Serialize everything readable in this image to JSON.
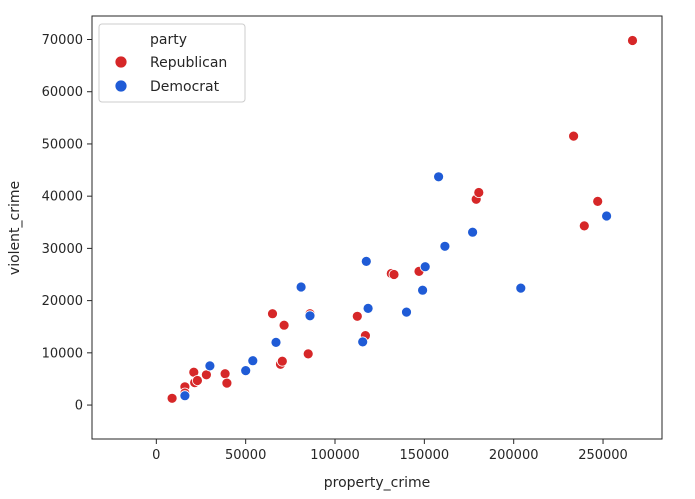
{
  "chart_data": {
    "type": "scatter",
    "xlabel": "property_crime",
    "ylabel": "violent_crime",
    "xlim": [
      -36000,
      283000
    ],
    "ylim": [
      -6500,
      74500
    ],
    "xticks": [
      0,
      50000,
      100000,
      150000,
      200000,
      250000
    ],
    "yticks": [
      0,
      10000,
      20000,
      30000,
      40000,
      50000,
      60000,
      70000
    ],
    "grid": false,
    "legend": {
      "title": "party",
      "position": "top-left"
    },
    "series": [
      {
        "name": "Republican",
        "color": "#d62728",
        "points": [
          [
            8800,
            1300
          ],
          [
            16000,
            3500
          ],
          [
            16000,
            2300
          ],
          [
            21000,
            6300
          ],
          [
            21500,
            4300
          ],
          [
            23000,
            4700
          ],
          [
            28000,
            5800
          ],
          [
            38500,
            6000
          ],
          [
            39500,
            4200
          ],
          [
            65000,
            17500
          ],
          [
            69500,
            7800
          ],
          [
            70500,
            8400
          ],
          [
            71500,
            15300
          ],
          [
            85000,
            9800
          ],
          [
            86000,
            17500
          ],
          [
            112500,
            17000
          ],
          [
            117000,
            13300
          ],
          [
            131500,
            25200
          ],
          [
            133000,
            25000
          ],
          [
            147000,
            25600
          ],
          [
            179000,
            39400
          ],
          [
            180500,
            40700
          ],
          [
            233500,
            51500
          ],
          [
            239500,
            34300
          ],
          [
            247000,
            39000
          ],
          [
            266500,
            69800
          ]
        ]
      },
      {
        "name": "Democrat",
        "color": "#1f5bd6",
        "points": [
          [
            16000,
            1800
          ],
          [
            30000,
            7500
          ],
          [
            50000,
            6600
          ],
          [
            54000,
            8500
          ],
          [
            67000,
            12000
          ],
          [
            81000,
            22600
          ],
          [
            86000,
            17100
          ],
          [
            115500,
            12100
          ],
          [
            117500,
            27500
          ],
          [
            118500,
            18500
          ],
          [
            140000,
            17800
          ],
          [
            149000,
            22000
          ],
          [
            150500,
            26500
          ],
          [
            158000,
            43700
          ],
          [
            161500,
            30400
          ],
          [
            177000,
            33100
          ],
          [
            204000,
            22400
          ],
          [
            252000,
            36200
          ]
        ]
      }
    ]
  }
}
